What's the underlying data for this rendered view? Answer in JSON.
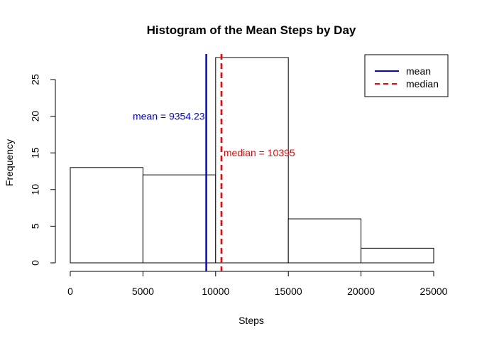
{
  "chart_data": {
    "type": "bar",
    "title": "Histogram of the Mean Steps by Day",
    "xlabel": "Steps",
    "ylabel": "Frequency",
    "bins": [
      {
        "x0": 0,
        "x1": 5000,
        "count": 13
      },
      {
        "x0": 5000,
        "x1": 10000,
        "count": 12
      },
      {
        "x0": 10000,
        "x1": 15000,
        "count": 28
      },
      {
        "x0": 15000,
        "x1": 20000,
        "count": 6
      },
      {
        "x0": 20000,
        "x1": 25000,
        "count": 2
      }
    ],
    "xlim": [
      0,
      25000
    ],
    "ylim": [
      0,
      28
    ],
    "x_ticks": [
      0,
      5000,
      10000,
      15000,
      20000,
      25000
    ],
    "y_ticks": [
      0,
      5,
      10,
      15,
      20,
      25
    ],
    "grid": false,
    "legend": {
      "position": "top-right",
      "items": [
        {
          "label": "mean",
          "color": "#0000ff",
          "style": "solid"
        },
        {
          "label": "median",
          "color": "#ff0000",
          "style": "dashed"
        }
      ]
    },
    "lines": [
      {
        "name": "mean",
        "x": 9354.23,
        "color": "#0000ff",
        "style": "solid"
      },
      {
        "name": "median",
        "x": 10395,
        "color": "#ff0000",
        "style": "dashed"
      }
    ],
    "annotations": [
      {
        "text": "mean =  9354.23",
        "color": "#0000ff",
        "x": 9354.23,
        "y": 20
      },
      {
        "text": "median =  10395",
        "color": "#ff0000",
        "x": 10395,
        "y": 15
      }
    ]
  }
}
